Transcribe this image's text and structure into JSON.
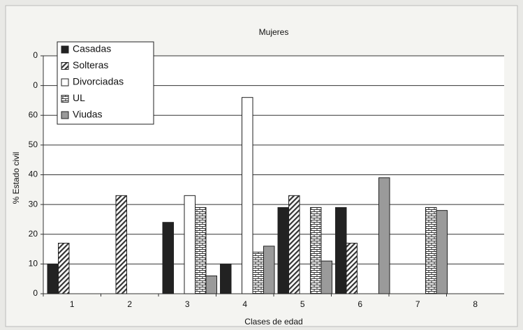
{
  "chart_data": {
    "type": "bar",
    "title": "Mujeres",
    "x_label": "Clases de edad",
    "y_label": "% Estado civil",
    "categories": [
      "1",
      "2",
      "3",
      "4",
      "5",
      "6",
      "7",
      "8"
    ],
    "series": [
      {
        "name": "Casadas",
        "color": "#222222",
        "values": [
          10,
          null,
          24,
          10,
          29,
          29,
          null,
          null
        ]
      },
      {
        "name": "Solteras",
        "color": "#444444",
        "pattern": "diagonal",
        "values": [
          17,
          33,
          null,
          null,
          33,
          17,
          null,
          null
        ]
      },
      {
        "name": "Divorciadas",
        "color": "#ffffff",
        "values": [
          null,
          null,
          33,
          66,
          null,
          null,
          null,
          null
        ]
      },
      {
        "name": "UL",
        "color": "#333333",
        "pattern": "brick",
        "values": [
          null,
          null,
          29,
          14,
          29,
          null,
          29,
          null
        ]
      },
      {
        "name": "Viudas",
        "color": "#9a9a9a",
        "values": [
          null,
          null,
          6,
          16,
          11,
          39,
          28,
          null
        ]
      }
    ],
    "ylim": [
      0,
      80
    ],
    "yticks": [
      0,
      10,
      20,
      30,
      40,
      50,
      60,
      {
        "value": 70,
        "label": "0"
      },
      {
        "value": 80,
        "label": "0"
      }
    ],
    "grid": true,
    "legend": "upper left"
  }
}
